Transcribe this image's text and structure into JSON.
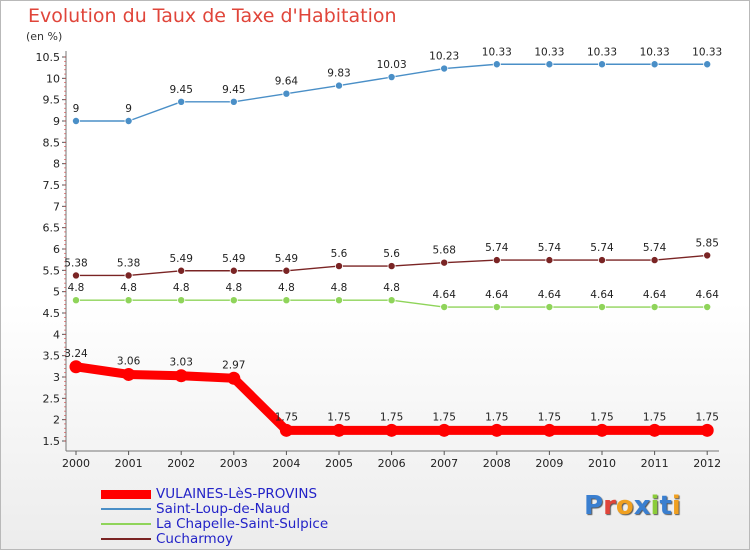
{
  "title": "Evolution du Taux de Taxe d'Habitation",
  "unit": "(en %)",
  "logo": "Proxiti",
  "chart_data": {
    "type": "line",
    "title": "Evolution du Taux de Taxe d'Habitation",
    "ylabel": "(en %)",
    "x": [
      "2000",
      "2001",
      "2002",
      "2003",
      "2004",
      "2005",
      "2006",
      "2007",
      "2008",
      "2009",
      "2010",
      "2011",
      "2012"
    ],
    "ylim": [
      1.5,
      10.5
    ],
    "yticks": [
      "1.5",
      "2",
      "2.5",
      "3",
      "3.5",
      "4",
      "4.5",
      "5",
      "5.5",
      "6",
      "6.5",
      "7",
      "7.5",
      "8",
      "8.5",
      "9",
      "9.5",
      "10",
      "10.5"
    ],
    "grid": false,
    "legend": "bottom-left",
    "series": [
      {
        "name": "VULAINES-LèS-PROVINS",
        "color": "#ff0000",
        "values": [
          3.24,
          3.06,
          3.03,
          2.97,
          1.75,
          1.75,
          1.75,
          1.75,
          1.75,
          1.75,
          1.75,
          1.75,
          1.75
        ],
        "labels": [
          "3.24",
          "3.06",
          "3.03",
          "2.97",
          "1.75",
          "1.75",
          "1.75",
          "1.75",
          "1.75",
          "1.75",
          "1.75",
          "1.75",
          "1.75"
        ]
      },
      {
        "name": "Saint-Loup-de-Naud",
        "color": "#4a8fc7",
        "values": [
          9,
          9,
          9.45,
          9.45,
          9.64,
          9.83,
          10.03,
          10.23,
          10.33,
          10.33,
          10.33,
          10.33,
          10.33
        ],
        "labels": [
          "9",
          "9",
          "9.45",
          "9.45",
          "9.64",
          "9.83",
          "10.03",
          "10.23",
          "10.33",
          "10.33",
          "10.33",
          "10.33",
          "10.33"
        ]
      },
      {
        "name": "La Chapelle-Saint-Sulpice",
        "color": "#8fd45a",
        "values": [
          4.8,
          4.8,
          4.8,
          4.8,
          4.8,
          4.8,
          4.8,
          4.64,
          4.64,
          4.64,
          4.64,
          4.64,
          4.64
        ],
        "labels": [
          "4.8",
          "4.8",
          "4.8",
          "4.8",
          "4.8",
          "4.8",
          "4.8",
          "4.64",
          "4.64",
          "4.64",
          "4.64",
          "4.64",
          "4.64"
        ]
      },
      {
        "name": "Cucharmoy",
        "color": "#7a2424",
        "values": [
          5.38,
          5.38,
          5.49,
          5.49,
          5.49,
          5.6,
          5.6,
          5.68,
          5.74,
          5.74,
          5.74,
          5.74,
          5.85
        ],
        "labels": [
          "5.38",
          "5.38",
          "5.49",
          "5.49",
          "5.49",
          "5.6",
          "5.6",
          "5.68",
          "5.74",
          "5.74",
          "5.74",
          "5.74",
          "5.85"
        ]
      }
    ]
  }
}
